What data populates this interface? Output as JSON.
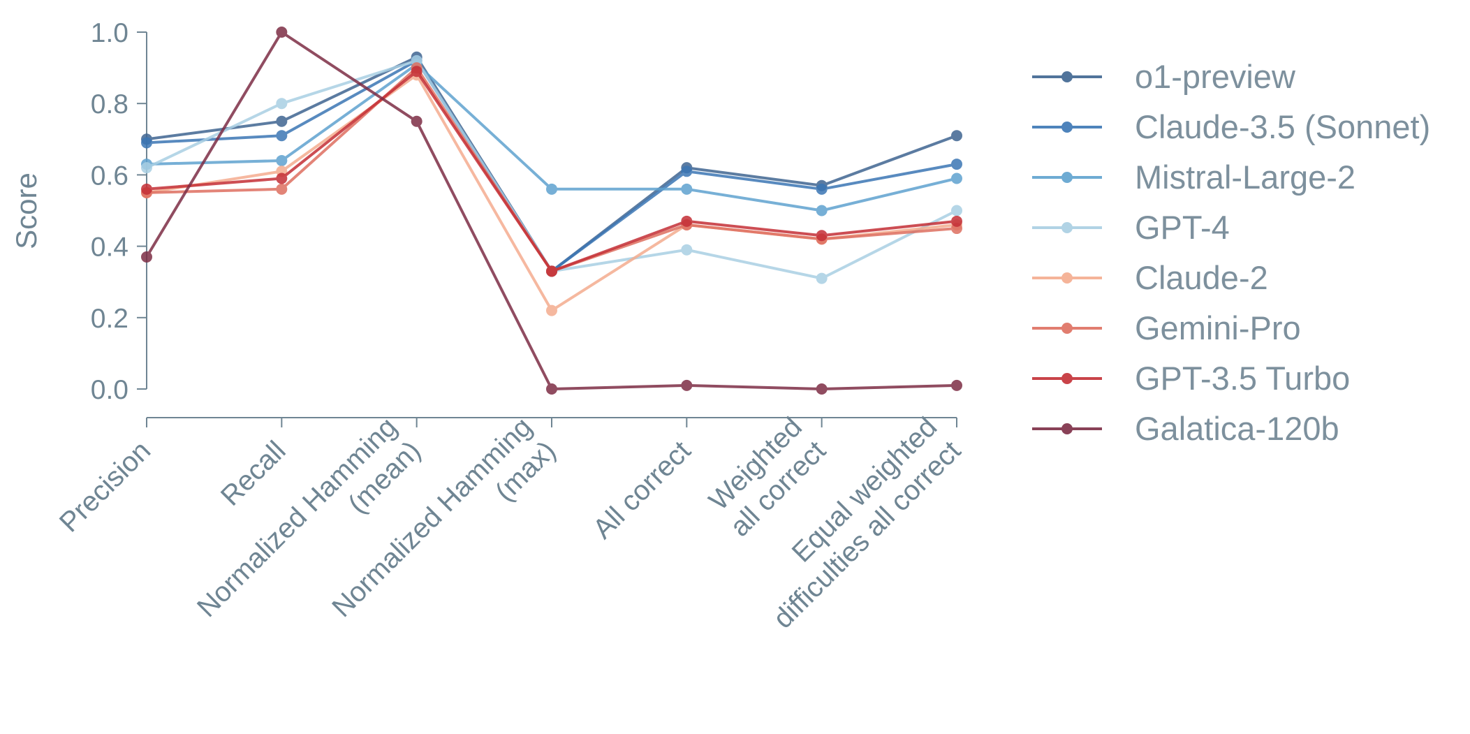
{
  "chart_data": {
    "type": "line",
    "ylabel": "Score",
    "xlabel": "",
    "ylim": [
      0,
      1
    ],
    "yticks": [
      "0.0",
      "0.2",
      "0.4",
      "0.6",
      "0.8",
      "1.0"
    ],
    "categories": [
      [
        "Precision"
      ],
      [
        "Recall"
      ],
      [
        "Normalized Hamming",
        "(mean)"
      ],
      [
        "Normalized Hamming",
        "(max)"
      ],
      [
        "All correct"
      ],
      [
        "Weighted",
        "all correct"
      ],
      [
        "Equal weighted",
        "difficulties all correct"
      ]
    ],
    "legend_position": "right",
    "series": [
      {
        "name": "o1-preview",
        "color": "#3f6591",
        "values": [
          0.7,
          0.75,
          0.93,
          0.33,
          0.62,
          0.57,
          0.71
        ]
      },
      {
        "name": "Claude-3.5 (Sonnet)",
        "color": "#3b76b4",
        "values": [
          0.69,
          0.71,
          0.92,
          0.33,
          0.61,
          0.56,
          0.63
        ]
      },
      {
        "name": "Mistral-Large-2",
        "color": "#5fa2cf",
        "values": [
          0.63,
          0.64,
          0.91,
          0.56,
          0.56,
          0.5,
          0.59
        ]
      },
      {
        "name": "GPT-4",
        "color": "#a9cfe3",
        "values": [
          0.62,
          0.8,
          0.92,
          0.33,
          0.39,
          0.31,
          0.5
        ]
      },
      {
        "name": "Claude-2",
        "color": "#f4ac8f",
        "values": [
          0.55,
          0.61,
          0.88,
          0.22,
          0.46,
          0.42,
          0.46
        ]
      },
      {
        "name": "Gemini-Pro",
        "color": "#de6f60",
        "values": [
          0.55,
          0.56,
          0.9,
          0.33,
          0.46,
          0.42,
          0.45
        ]
      },
      {
        "name": "GPT-3.5 Turbo",
        "color": "#c42f36",
        "values": [
          0.56,
          0.59,
          0.89,
          0.33,
          0.47,
          0.43,
          0.47
        ]
      },
      {
        "name": "Galatica-120b",
        "color": "#7d2d45",
        "values": [
          0.37,
          1.0,
          0.75,
          0.0,
          0.01,
          0.0,
          0.01
        ]
      }
    ]
  }
}
